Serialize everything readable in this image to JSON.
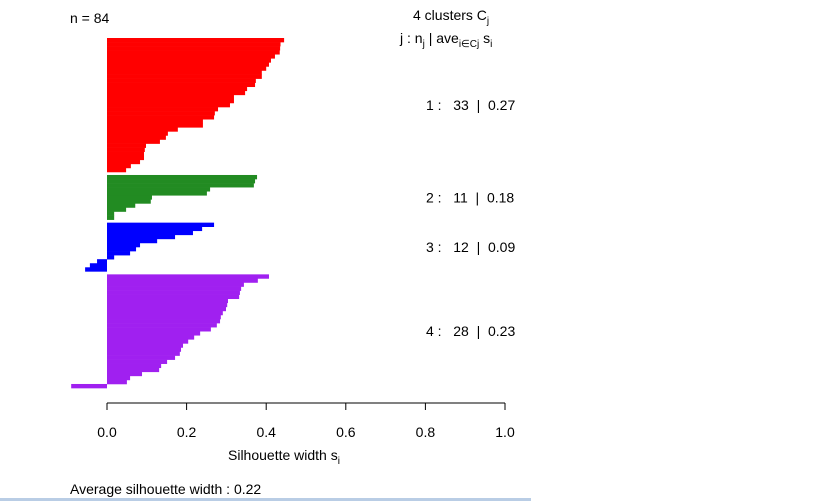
{
  "chart_data": {
    "type": "bar",
    "orientation": "horizontal",
    "n_label": "n = 84",
    "legend_header": "4  clusters  C",
    "legend_header_sub": "j",
    "legend_subheader": {
      "j": "j :  n",
      "j_sub": "j",
      "ave": " | ave",
      "ave_sub": "i∈Cj",
      "s": "  s",
      "s_sub": "i"
    },
    "xlabel": "Silhouette width s",
    "xlabel_sub": "i",
    "xlim": [
      0.0,
      1.0
    ],
    "xticks": [
      "0.0",
      "0.2",
      "0.4",
      "0.6",
      "0.8",
      "1.0"
    ],
    "footer": "Average silhouette width :  0.22",
    "clusters": [
      {
        "id": 1,
        "label": "1 :   33  |  0.27",
        "n": 33,
        "ave": 0.27,
        "color": "#ff0000",
        "values": [
          0.445,
          0.436,
          0.435,
          0.434,
          0.422,
          0.412,
          0.407,
          0.4,
          0.389,
          0.389,
          0.374,
          0.372,
          0.352,
          0.347,
          0.319,
          0.319,
          0.309,
          0.279,
          0.271,
          0.269,
          0.241,
          0.241,
          0.178,
          0.153,
          0.148,
          0.133,
          0.098,
          0.095,
          0.093,
          0.093,
          0.083,
          0.06,
          0.048
        ]
      },
      {
        "id": 2,
        "label": "2 :   11  |  0.18",
        "n": 11,
        "ave": 0.18,
        "color": "#228b22",
        "values": [
          0.377,
          0.372,
          0.369,
          0.259,
          0.251,
          0.113,
          0.11,
          0.071,
          0.048,
          0.018,
          0.018
        ]
      },
      {
        "id": 3,
        "label": "3 :   12  |  0.09",
        "n": 12,
        "ave": 0.09,
        "color": "#0000ff",
        "values": [
          0.269,
          0.239,
          0.216,
          0.171,
          0.126,
          0.083,
          0.073,
          0.058,
          0.018,
          -0.025,
          -0.043,
          -0.055
        ]
      },
      {
        "id": 4,
        "label": "4 :   28  |  0.23",
        "n": 28,
        "ave": 0.23,
        "color": "#a020f0",
        "values": [
          0.407,
          0.379,
          0.344,
          0.337,
          0.334,
          0.332,
          0.304,
          0.302,
          0.299,
          0.291,
          0.286,
          0.284,
          0.276,
          0.261,
          0.234,
          0.219,
          0.204,
          0.191,
          0.186,
          0.183,
          0.171,
          0.151,
          0.136,
          0.131,
          0.088,
          0.058,
          0.05,
          -0.09
        ]
      }
    ]
  }
}
